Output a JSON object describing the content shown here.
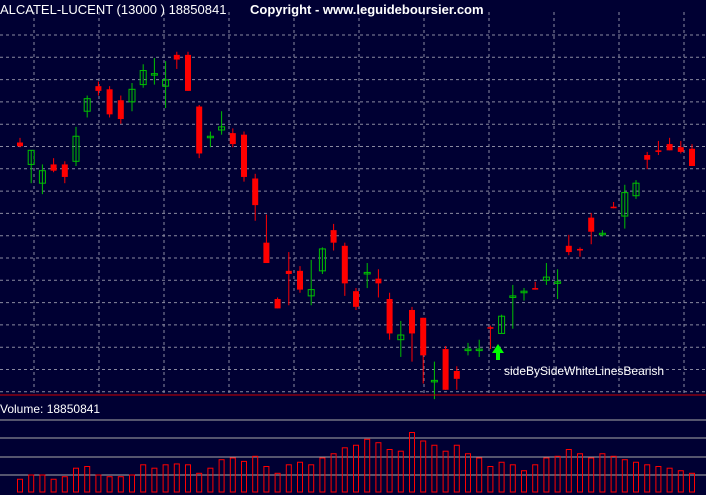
{
  "header": {
    "title": "ALCATEL-LUCENT (13000 ) 18850841",
    "copyright": "Copyright - www.leguideboursier.com"
  },
  "volume_panel": {
    "label": "Volume: 18850841"
  },
  "annotation": {
    "pattern": "sideBySideWhiteLinesBearish",
    "arrow_candle_index": 40
  },
  "colors": {
    "background": "#000033",
    "grid": "#8a8aa0",
    "up": "#00c000",
    "down": "#ff0000",
    "volume": "#ff0000",
    "separator": "#cc0000",
    "arrow": "#00ff00"
  },
  "chart_data": {
    "type": "candlestick",
    "price_ylim": [
      0,
      100
    ],
    "volume_ylim": [
      0,
      100
    ],
    "candles": [
      {
        "o": 73.0,
        "h": 74.5,
        "l": 71.5,
        "c": 71.8
      },
      {
        "o": 66.0,
        "h": 70.5,
        "l": 60.0,
        "c": 70.5
      },
      {
        "o": 60.0,
        "h": 66.0,
        "l": 56.5,
        "c": 64.0
      },
      {
        "o": 66.0,
        "h": 68.0,
        "l": 63.5,
        "c": 64.0
      },
      {
        "o": 66.0,
        "h": 67.0,
        "l": 60.0,
        "c": 62.0
      },
      {
        "o": 67.0,
        "h": 78.0,
        "l": 65.5,
        "c": 75.0
      },
      {
        "o": 83.0,
        "h": 88.0,
        "l": 81.0,
        "c": 87.0
      },
      {
        "o": 91.0,
        "h": 92.5,
        "l": 88.0,
        "c": 89.5
      },
      {
        "o": 90.0,
        "h": 91.0,
        "l": 81.0,
        "c": 82.0
      },
      {
        "o": 86.5,
        "h": 88.0,
        "l": 79.0,
        "c": 80.5
      },
      {
        "o": 86.0,
        "h": 92.0,
        "l": 83.0,
        "c": 90.0
      },
      {
        "o": 91.5,
        "h": 98.0,
        "l": 90.5,
        "c": 96.0
      },
      {
        "o": 95.0,
        "h": 100.0,
        "l": 91.5,
        "c": 95.0
      },
      {
        "o": 91.0,
        "h": 99.0,
        "l": 84.0,
        "c": 93.0
      },
      {
        "o": 101.0,
        "h": 102.0,
        "l": 96.5,
        "c": 99.5
      },
      {
        "o": 101.0,
        "h": 102.0,
        "l": 89.5,
        "c": 89.5
      },
      {
        "o": 84.5,
        "h": 85.0,
        "l": 68.0,
        "c": 69.5
      },
      {
        "o": 75.0,
        "h": 76.5,
        "l": 71.5,
        "c": 75.0
      },
      {
        "o": 77.0,
        "h": 83.0,
        "l": 75.5,
        "c": 78.0
      },
      {
        "o": 76.0,
        "h": 77.5,
        "l": 71.5,
        "c": 72.5
      },
      {
        "o": 75.5,
        "h": 76.5,
        "l": 60.5,
        "c": 62.0
      },
      {
        "o": 61.5,
        "h": 63.0,
        "l": 48.0,
        "c": 53.0
      },
      {
        "o": 41.0,
        "h": 50.0,
        "l": 34.5,
        "c": 34.5
      },
      {
        "o": 23.0,
        "h": 23.5,
        "l": 20.0,
        "c": 20.0
      },
      {
        "o": 32.0,
        "h": 38.0,
        "l": 21.0,
        "c": 31.0
      },
      {
        "o": 32.0,
        "h": 33.5,
        "l": 25.0,
        "c": 26.0
      },
      {
        "o": 24.0,
        "h": 35.5,
        "l": 21.0,
        "c": 26.0
      },
      {
        "o": 32.0,
        "h": 39.5,
        "l": 31.0,
        "c": 39.0
      },
      {
        "o": 45.0,
        "h": 47.0,
        "l": 38.5,
        "c": 41.0
      },
      {
        "o": 40.0,
        "h": 41.0,
        "l": 24.0,
        "c": 28.0
      },
      {
        "o": 25.5,
        "h": 26.5,
        "l": 19.5,
        "c": 20.5
      },
      {
        "o": 31.0,
        "h": 34.5,
        "l": 26.5,
        "c": 31.5
      },
      {
        "o": 29.5,
        "h": 32.5,
        "l": 23.5,
        "c": 28.0
      },
      {
        "o": 23.0,
        "h": 25.0,
        "l": 10.0,
        "c": 12.0
      },
      {
        "o": 10.0,
        "h": 16.0,
        "l": 4.5,
        "c": 11.5
      },
      {
        "o": 19.5,
        "h": 20.5,
        "l": 3.0,
        "c": 12.0
      },
      {
        "o": 17.0,
        "h": 17.0,
        "l": -4.0,
        "c": 5.0
      },
      {
        "o": -3.0,
        "h": 3.0,
        "l": -9.0,
        "c": -3.0
      },
      {
        "o": 7.0,
        "h": 8.0,
        "l": -6.0,
        "c": -6.0
      },
      {
        "o": 0.0,
        "h": 1.5,
        "l": -6.0,
        "c": -2.5
      },
      {
        "o": 7.0,
        "h": 9.0,
        "l": 5.0,
        "c": 7.0
      },
      {
        "o": 7.0,
        "h": 10.0,
        "l": 4.5,
        "c": 7.0
      },
      {
        "o": 14.0,
        "h": 14.5,
        "l": 7.0,
        "c": 13.5
      },
      {
        "o": 12.0,
        "h": 18.0,
        "l": 12.0,
        "c": 17.5
      },
      {
        "o": 23.5,
        "h": 27.5,
        "l": 13.5,
        "c": 24.0
      },
      {
        "o": 25.0,
        "h": 26.5,
        "l": 22.5,
        "c": 25.5
      },
      {
        "o": 26.5,
        "h": 28.5,
        "l": 26.0,
        "c": 26.0
      },
      {
        "o": 29.0,
        "h": 34.5,
        "l": 27.5,
        "c": 30.0
      },
      {
        "o": 28.0,
        "h": 32.5,
        "l": 23.0,
        "c": 28.5
      },
      {
        "o": 40.0,
        "h": 43.5,
        "l": 37.0,
        "c": 38.0
      },
      {
        "o": 39.0,
        "h": 39.5,
        "l": 36.5,
        "c": 38.5
      },
      {
        "o": 49.0,
        "h": 50.5,
        "l": 40.5,
        "c": 44.5
      },
      {
        "o": 44.0,
        "h": 45.0,
        "l": 43.0,
        "c": 44.0
      },
      {
        "o": 52.5,
        "h": 54.0,
        "l": 52.0,
        "c": 52.0
      },
      {
        "o": 49.5,
        "h": 59.5,
        "l": 45.5,
        "c": 57.0
      },
      {
        "o": 56.0,
        "h": 61.0,
        "l": 55.0,
        "c": 60.0
      },
      {
        "o": 69.0,
        "h": 70.0,
        "l": 64.5,
        "c": 67.5
      },
      {
        "o": 70.5,
        "h": 73.5,
        "l": 69.0,
        "c": 70.0
      },
      {
        "o": 72.5,
        "h": 74.5,
        "l": 70.5,
        "c": 70.5
      },
      {
        "o": 71.5,
        "h": 73.5,
        "l": 69.5,
        "c": 70.0
      },
      {
        "o": 71.0,
        "h": 72.5,
        "l": 65.5,
        "c": 65.5
      }
    ],
    "volumes": [
      15,
      20,
      20,
      15,
      18,
      28,
      30,
      20,
      18,
      18,
      20,
      32,
      28,
      32,
      33,
      32,
      22,
      28,
      38,
      40,
      36,
      42,
      30,
      22,
      32,
      35,
      32,
      40,
      45,
      52,
      55,
      62,
      58,
      50,
      48,
      70,
      60,
      55,
      48,
      55,
      45,
      40,
      30,
      35,
      32,
      25,
      32,
      40,
      42,
      50,
      45,
      40,
      45,
      42,
      38,
      35,
      32,
      30,
      28,
      25,
      22
    ]
  }
}
